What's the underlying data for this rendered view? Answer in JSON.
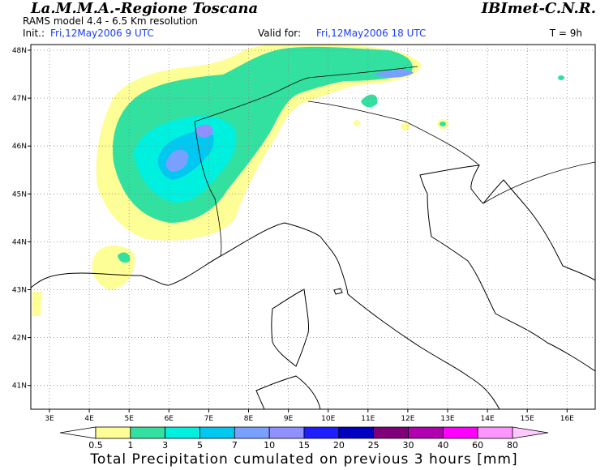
{
  "header": {
    "title": "La.M.M.A.-Regione Toscana",
    "subtitle": "RAMS model 4.4  -  6.5 Km resolution",
    "org": "IBImet-C.N.R.",
    "init_label": "Init.:",
    "init_value": "Fri,12May2006  9 UTC",
    "valid_label": "Valid for:",
    "valid_value": "Fri,12May2006 18 UTC",
    "lead": "T = 9h"
  },
  "map": {
    "lat_labels": [
      "48N",
      "47N",
      "46N",
      "45N",
      "44N",
      "43N",
      "42N",
      "41N"
    ],
    "lon_labels": [
      "3E",
      "4E",
      "5E",
      "6E",
      "7E",
      "8E",
      "9E",
      "10E",
      "11E",
      "12E",
      "13E",
      "14E",
      "15E",
      "16E"
    ]
  },
  "colorbar": {
    "labels": [
      0.5,
      1,
      3,
      5,
      7,
      10,
      15,
      20,
      25,
      30,
      40,
      60,
      80
    ],
    "colors": [
      "#ffffff",
      "#fefe96",
      "#32e0a0",
      "#00f0e0",
      "#00c8f0",
      "#7aa0ff",
      "#9090ff",
      "#1e1eff",
      "#0000c0",
      "#80007a",
      "#b000b0",
      "#ff00ff",
      "#ff96ff",
      "#ffc8ff"
    ]
  },
  "caption": "Total Precipitation cumulated on previous 3 hours [mm]"
}
